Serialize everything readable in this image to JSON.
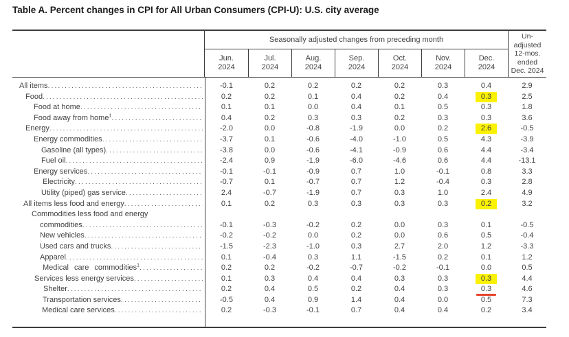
{
  "title": "Table A. Percent changes in CPI for All Urban Consumers (CPI-U): U.S. city average",
  "colors": {
    "highlight": "#fbf103",
    "annotation_red": "#e8432b"
  },
  "table": {
    "group_header": "Seasonally adjusted changes from preceding month",
    "unadjusted_header_lines": [
      "Un-",
      "adjusted",
      "12-mos.",
      "ended",
      "Dec. 2024"
    ],
    "month_columns": [
      {
        "month": "Jun.",
        "year": "2024"
      },
      {
        "month": "Jul.",
        "year": "2024"
      },
      {
        "month": "Aug.",
        "year": "2024"
      },
      {
        "month": "Sep.",
        "year": "2024"
      },
      {
        "month": "Oct.",
        "year": "2024"
      },
      {
        "month": "Nov.",
        "year": "2024"
      },
      {
        "month": "Dec.",
        "year": "2024"
      }
    ],
    "rows": [
      {
        "label": "All items",
        "indent": 10,
        "values": [
          "-0.1",
          "0.2",
          "0.2",
          "0.2",
          "0.2",
          "0.3",
          "0.4",
          "2.9"
        ]
      },
      {
        "label": "Food",
        "indent": 19,
        "values": [
          "0.2",
          "0.2",
          "0.1",
          "0.4",
          "0.2",
          "0.4",
          "0.3",
          "2.5"
        ],
        "highlight_col": 6
      },
      {
        "label": "Food at home",
        "indent": 31,
        "values": [
          "0.1",
          "0.1",
          "0.0",
          "0.4",
          "0.1",
          "0.5",
          "0.3",
          "1.8"
        ]
      },
      {
        "label": "Food away from home",
        "sup": "1",
        "indent": 31,
        "values": [
          "0.4",
          "0.2",
          "0.3",
          "0.3",
          "0.2",
          "0.3",
          "0.3",
          "3.6"
        ]
      },
      {
        "label": "Energy",
        "indent": 19,
        "values": [
          "-2.0",
          "0.0",
          "-0.8",
          "-1.9",
          "0.0",
          "0.2",
          "2.6",
          "-0.5"
        ],
        "highlight_col": 6
      },
      {
        "label": "Energy commodities",
        "indent": 31,
        "values": [
          "-3.7",
          "0.1",
          "-0.6",
          "-4.0",
          "-1.0",
          "0.5",
          "4.3",
          "-3.9"
        ]
      },
      {
        "label": "Gasoline (all types)",
        "indent": 42,
        "values": [
          "-3.8",
          "0.0",
          "-0.6",
          "-4.1",
          "-0.9",
          "0.6",
          "4.4",
          "-3.4"
        ]
      },
      {
        "label": "Fuel oil",
        "indent": 42,
        "values": [
          "-2.4",
          "0.9",
          "-1.9",
          "-6.0",
          "-4.6",
          "0.6",
          "4.4",
          "-13.1"
        ]
      },
      {
        "label": "Energy services",
        "indent": 31,
        "values": [
          "-0.1",
          "-0.1",
          "-0.9",
          "0.7",
          "1.0",
          "-0.1",
          "0.8",
          "3.3"
        ]
      },
      {
        "label": "Electricity",
        "indent": 44,
        "values": [
          "-0.7",
          "0.1",
          "-0.7",
          "0.7",
          "1.2",
          "-0.4",
          "0.3",
          "2.8"
        ]
      },
      {
        "label": "Utility (piped) gas service",
        "indent": 42,
        "values": [
          "2.4",
          "-0.7",
          "-1.9",
          "0.7",
          "0.3",
          "1.0",
          "2.4",
          "4.9"
        ]
      },
      {
        "label": "All items less food and energy",
        "indent": 16,
        "values": [
          "0.1",
          "0.2",
          "0.3",
          "0.3",
          "0.3",
          "0.3",
          "0.2",
          "3.2"
        ],
        "highlight_col": 6
      },
      {
        "label": "Commodities less food and energy",
        "label2": "commodities",
        "indent": 28,
        "indent2": 40,
        "values": [
          "-0.1",
          "-0.3",
          "-0.2",
          "0.2",
          "0.0",
          "0.3",
          "0.1",
          "-0.5"
        ]
      },
      {
        "label": "New vehicles",
        "indent": 40,
        "values": [
          "-0.2",
          "-0.2",
          "0.0",
          "0.2",
          "0.0",
          "0.6",
          "0.5",
          "-0.4"
        ]
      },
      {
        "label": "Used cars and trucks",
        "indent": 40,
        "values": [
          "-1.5",
          "-2.3",
          "-1.0",
          "0.3",
          "2.7",
          "2.0",
          "1.2",
          "-3.3"
        ]
      },
      {
        "label": "Apparel",
        "indent": 40,
        "values": [
          "0.1",
          "-0.4",
          "0.3",
          "1.1",
          "-1.5",
          "0.2",
          "0.1",
          "1.2"
        ]
      },
      {
        "label": "Medical care commodities",
        "sup": "1",
        "indent": 44,
        "spread": true,
        "values": [
          "0.2",
          "0.2",
          "-0.2",
          "-0.7",
          "-0.2",
          "-0.1",
          "0.0",
          "0.5"
        ]
      },
      {
        "label": "Services less energy services",
        "indent": 32,
        "values": [
          "0.1",
          "0.3",
          "0.4",
          "0.4",
          "0.3",
          "0.3",
          "0.3",
          "4.4"
        ],
        "highlight_col": 6
      },
      {
        "label": "Shelter",
        "indent": 45,
        "values": [
          "0.2",
          "0.4",
          "0.5",
          "0.2",
          "0.4",
          "0.3",
          "0.3",
          "4.6"
        ],
        "red_underline_label": true
      },
      {
        "label": "Transportation services",
        "indent": 44,
        "values": [
          "-0.5",
          "0.4",
          "0.9",
          "1.4",
          "0.4",
          "0.0",
          "0.5",
          "7.3"
        ],
        "red_overline_col": 6
      },
      {
        "label": "Medical care services",
        "indent": 43,
        "values": [
          "0.2",
          "-0.3",
          "-0.1",
          "0.7",
          "0.4",
          "0.4",
          "0.2",
          "3.4"
        ]
      }
    ]
  }
}
